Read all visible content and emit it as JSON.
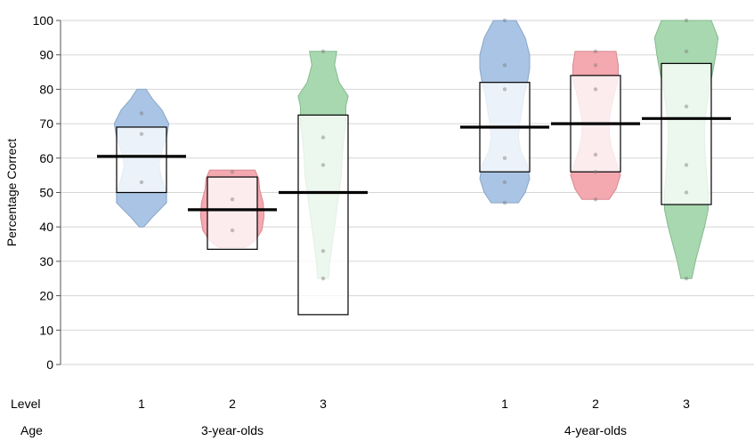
{
  "chart_data": {
    "type": "pirate",
    "ylabel": "Percentage Correct",
    "ylim": [
      0,
      100
    ],
    "yticks": [
      0,
      10,
      20,
      30,
      40,
      50,
      60,
      70,
      80,
      90,
      100
    ],
    "grid": true,
    "row_labels": {
      "level": "Level",
      "age": "Age"
    },
    "groups": [
      {
        "name": "3-year-olds",
        "levels": [
          "1",
          "2",
          "3"
        ]
      },
      {
        "name": "4-year-olds",
        "levels": [
          "1",
          "2",
          "3"
        ]
      }
    ],
    "colors": {
      "1": {
        "fill": "#a9c4e4",
        "stroke": "#8aa6c8"
      },
      "2": {
        "fill": "#f4a8b0",
        "stroke": "#d98a93"
      },
      "3": {
        "fill": "#a8d8b0",
        "stroke": "#86b98e"
      }
    },
    "series": [
      {
        "group": "3-year-olds",
        "level": "1",
        "mean": 60.5,
        "box": [
          50,
          69
        ],
        "density": [
          [
            40,
            0.05
          ],
          [
            43,
            0.25
          ],
          [
            47,
            0.55
          ],
          [
            50,
            0.55
          ],
          [
            54,
            0.45
          ],
          [
            58,
            0.38
          ],
          [
            62,
            0.45
          ],
          [
            66,
            0.55
          ],
          [
            70,
            0.6
          ],
          [
            74,
            0.45
          ],
          [
            77,
            0.25
          ],
          [
            80,
            0.1
          ]
        ],
        "points": [
          53,
          67,
          73
        ]
      },
      {
        "group": "3-year-olds",
        "level": "2",
        "mean": 45,
        "box": [
          33.5,
          54.5
        ],
        "density": [
          [
            34,
            0.3
          ],
          [
            36,
            0.5
          ],
          [
            39,
            0.65
          ],
          [
            43,
            0.7
          ],
          [
            47,
            0.68
          ],
          [
            51,
            0.6
          ],
          [
            54,
            0.58
          ],
          [
            56.5,
            0.5
          ]
        ],
        "points": [
          39,
          48,
          56
        ]
      },
      {
        "group": "3-year-olds",
        "level": "3",
        "mean": 50,
        "box": [
          14.5,
          72.5
        ],
        "density": [
          [
            25,
            0.12
          ],
          [
            30,
            0.15
          ],
          [
            35,
            0.2
          ],
          [
            40,
            0.25
          ],
          [
            45,
            0.3
          ],
          [
            50,
            0.35
          ],
          [
            55,
            0.4
          ],
          [
            60,
            0.42
          ],
          [
            65,
            0.45
          ],
          [
            70,
            0.5
          ],
          [
            75,
            0.5
          ],
          [
            78,
            0.55
          ],
          [
            82,
            0.35
          ],
          [
            87,
            0.25
          ],
          [
            91,
            0.3
          ]
        ],
        "points": [
          25,
          33,
          58,
          66,
          91
        ]
      },
      {
        "group": "4-year-olds",
        "level": "1",
        "mean": 69,
        "box": [
          56,
          82
        ],
        "density": [
          [
            47,
            0.3
          ],
          [
            50,
            0.45
          ],
          [
            54,
            0.55
          ],
          [
            58,
            0.5
          ],
          [
            62,
            0.35
          ],
          [
            66,
            0.3
          ],
          [
            70,
            0.33
          ],
          [
            74,
            0.38
          ],
          [
            78,
            0.42
          ],
          [
            82,
            0.5
          ],
          [
            86,
            0.55
          ],
          [
            90,
            0.55
          ],
          [
            95,
            0.45
          ],
          [
            100,
            0.25
          ]
        ],
        "points": [
          47,
          53,
          60,
          80,
          87,
          100
        ]
      },
      {
        "group": "4-year-olds",
        "level": "2",
        "mean": 70,
        "box": [
          56,
          84
        ],
        "density": [
          [
            48,
            0.3
          ],
          [
            51,
            0.45
          ],
          [
            55,
            0.55
          ],
          [
            59,
            0.45
          ],
          [
            63,
            0.35
          ],
          [
            67,
            0.3
          ],
          [
            71,
            0.3
          ],
          [
            75,
            0.35
          ],
          [
            79,
            0.42
          ],
          [
            83,
            0.5
          ],
          [
            87,
            0.5
          ],
          [
            91,
            0.45
          ]
        ],
        "points": [
          48,
          56,
          61,
          80,
          87,
          91
        ]
      },
      {
        "group": "4-year-olds",
        "level": "3",
        "mean": 71.5,
        "box": [
          46.5,
          87.5
        ],
        "density": [
          [
            25,
            0.12
          ],
          [
            30,
            0.2
          ],
          [
            35,
            0.3
          ],
          [
            40,
            0.4
          ],
          [
            45,
            0.48
          ],
          [
            50,
            0.48
          ],
          [
            55,
            0.45
          ],
          [
            60,
            0.42
          ],
          [
            65,
            0.4
          ],
          [
            70,
            0.4
          ],
          [
            75,
            0.45
          ],
          [
            80,
            0.5
          ],
          [
            85,
            0.58
          ],
          [
            90,
            0.65
          ],
          [
            95,
            0.7
          ],
          [
            100,
            0.55
          ]
        ],
        "points": [
          25,
          50,
          58,
          75,
          91,
          100
        ]
      }
    ]
  }
}
